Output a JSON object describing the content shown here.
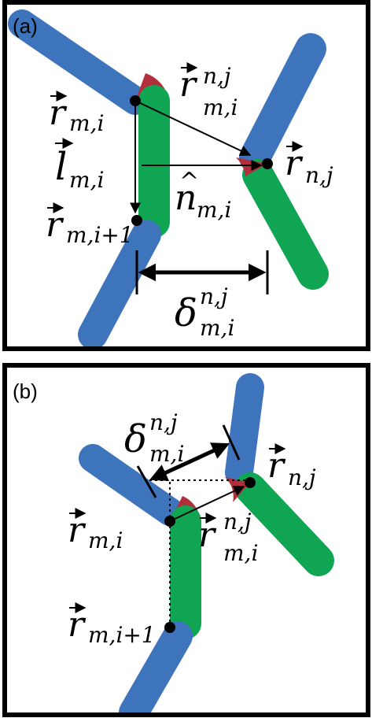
{
  "colors": {
    "segment_blue": "#3d74bc",
    "segment_green": "#0fa553",
    "contact_red": "#b22e3b",
    "frame": "#000000",
    "background": "#ffffff"
  },
  "panel_a": {
    "label": "(a)",
    "labels": {
      "r_mi": {
        "base": "r",
        "sub": "m,i"
      },
      "r_mi_nj": {
        "base": "r",
        "sup": "n,j",
        "sub": "m,i"
      },
      "l_mi": {
        "base": "l",
        "sub": "m,i"
      },
      "n_mi": {
        "base": "n",
        "sub": "m,i"
      },
      "r_nj": {
        "base": "r",
        "sub": "n,j"
      },
      "r_mi1": {
        "base": "r",
        "sub": "m,i+1"
      },
      "delta": {
        "base": "δ",
        "sup": "n,j",
        "sub": "m,i"
      }
    }
  },
  "panel_b": {
    "label": "(b)",
    "labels": {
      "delta": {
        "base": "δ",
        "sup": "n,j",
        "sub": "m,i"
      },
      "r_nj": {
        "base": "r",
        "sub": "n,j"
      },
      "r_mi": {
        "base": "r",
        "sub": "m,i"
      },
      "r_mi_nj": {
        "base": "r",
        "sup": "n,j",
        "sub": "m,i"
      },
      "r_mi1": {
        "base": "r",
        "sub": "m,i+1"
      }
    }
  }
}
